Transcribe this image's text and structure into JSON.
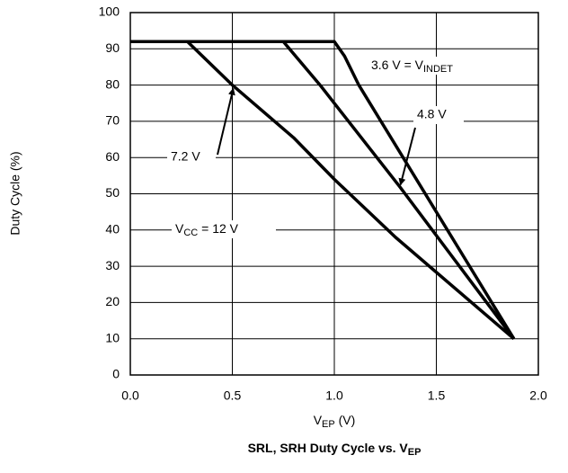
{
  "chart_data": {
    "type": "line",
    "title": {
      "main": "SRL, SRH Duty Cycle vs. V",
      "sub": "EP"
    },
    "x_label": {
      "main": "V",
      "sub": "EP",
      "rest": " (V)"
    },
    "y_label": "Duty Cycle (%)",
    "xlim": [
      0,
      2
    ],
    "ylim": [
      0,
      100
    ],
    "xticks": [
      {
        "value": 0,
        "label": "0.0"
      },
      0.5,
      {
        "value": 1,
        "label": "1.0"
      },
      1.5,
      {
        "value": 2,
        "label": "2.0"
      }
    ],
    "yticks": [
      0,
      10,
      20,
      30,
      40,
      50,
      60,
      70,
      80,
      90,
      100
    ],
    "grid": true,
    "series": [
      {
        "name": {
          "main": "3.6 V = V",
          "sub": "INDET"
        },
        "color": "#000000",
        "x": [
          0,
          1.0,
          1.05,
          1.12,
          1.88
        ],
        "values": [
          92,
          92,
          88,
          80,
          10
        ]
      },
      {
        "name": "4.8 V",
        "color": "#000000",
        "x": [
          0,
          0.75,
          0.93,
          1.32,
          1.88
        ],
        "values": [
          92,
          92,
          80,
          52,
          10
        ]
      },
      {
        "name": "7.2 V",
        "color": "#000000",
        "x": [
          0,
          0.28,
          0.5,
          0.8,
          1.0,
          1.3,
          1.88
        ],
        "values": [
          92,
          92,
          80,
          65.5,
          54,
          38,
          10
        ]
      }
    ],
    "annotation": {
      "main": "V",
      "sub": "CC",
      "rest": " = 12 V"
    }
  }
}
